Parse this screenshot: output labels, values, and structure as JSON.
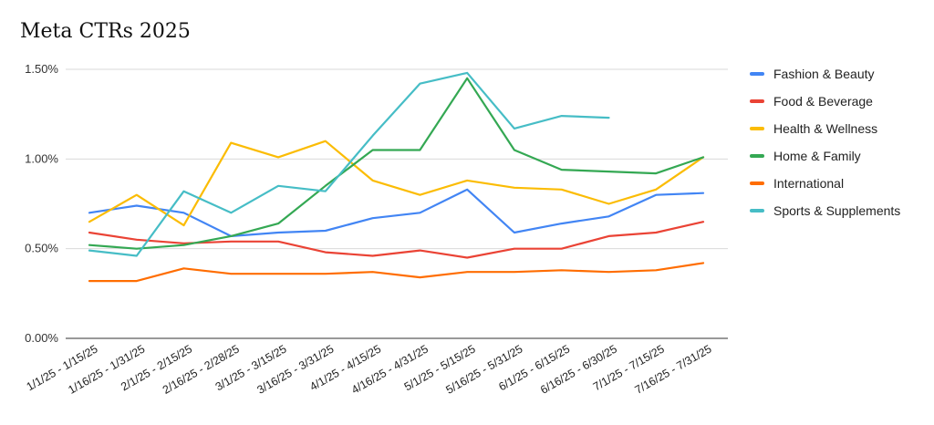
{
  "chart_data": {
    "type": "line",
    "title": "Meta CTRs 2025",
    "xlabel": "",
    "ylabel": "",
    "ylim": [
      0,
      1.5
    ],
    "yticks": [
      "0.00%",
      "0.50%",
      "1.00%",
      "1.50%"
    ],
    "grid": true,
    "legend_position": "right",
    "categories": [
      "1/1/25 - 1/15/25",
      "1/16/25 - 1/31/25",
      "2/1/25 - 2/15/25",
      "2/16/25 - 2/28/25",
      "3/1/25 - 3/15/25",
      "3/16/25 - 3/31/25",
      "4/1/25 - 4/15/25",
      "4/16/25 - 4/31/25",
      "5/1/25 - 5/15/25",
      "5/16/25 - 5/31/25",
      "6/1/25 - 6/15/25",
      "6/16/25 - 6/30/25",
      "7/1/25 - 7/15/25",
      "7/16/25 - 7/31/25"
    ],
    "series": [
      {
        "name": "Fashion & Beauty",
        "color": "#4285f4",
        "values": [
          0.7,
          0.74,
          0.7,
          0.57,
          0.59,
          0.6,
          0.67,
          0.7,
          0.83,
          0.59,
          0.64,
          0.68,
          0.8,
          0.81
        ]
      },
      {
        "name": "Food & Beverage",
        "color": "#ea4335",
        "values": [
          0.59,
          0.55,
          0.53,
          0.54,
          0.54,
          0.48,
          0.46,
          0.49,
          0.45,
          0.5,
          0.5,
          0.57,
          0.59,
          0.65
        ]
      },
      {
        "name": "Health & Wellness",
        "color": "#fbbc04",
        "values": [
          0.65,
          0.8,
          0.63,
          1.09,
          1.01,
          1.1,
          0.88,
          0.8,
          0.88,
          0.84,
          0.83,
          0.75,
          0.83,
          1.01
        ]
      },
      {
        "name": "Home & Family",
        "color": "#34a853",
        "values": [
          0.52,
          0.5,
          0.52,
          0.57,
          0.64,
          0.85,
          1.05,
          1.05,
          1.45,
          1.05,
          0.94,
          0.93,
          0.92,
          1.01
        ]
      },
      {
        "name": "International",
        "color": "#ff6d01",
        "values": [
          0.32,
          0.32,
          0.39,
          0.36,
          0.36,
          0.36,
          0.37,
          0.34,
          0.37,
          0.37,
          0.38,
          0.37,
          0.38,
          0.42
        ]
      },
      {
        "name": "Sports & Supplements",
        "color": "#46bdc6",
        "values": [
          0.49,
          0.46,
          0.82,
          0.7,
          0.85,
          0.82,
          1.13,
          1.42,
          1.48,
          1.17,
          1.24,
          1.23,
          null,
          null
        ]
      }
    ]
  }
}
